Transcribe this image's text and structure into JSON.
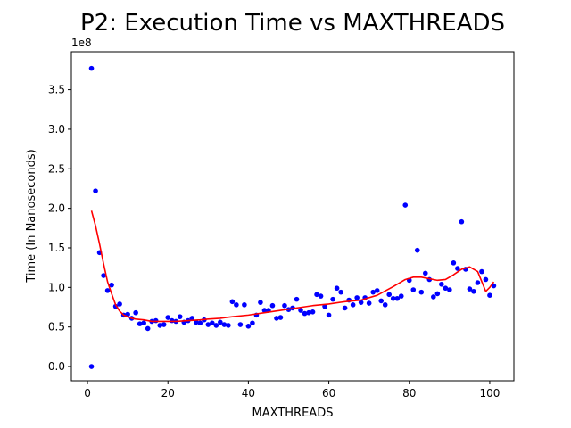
{
  "chart_data": {
    "type": "scatter",
    "title": "P2: Execution Time vs MAXTHREADS",
    "xlabel": "MAXTHREADS",
    "ylabel": "Time (In Nanoseconds)",
    "y_offset_label": "1e8",
    "y_scale": 100000000,
    "xlim": [
      -4,
      106
    ],
    "ylim": [
      -0.18,
      3.98
    ],
    "x_ticks": [
      0,
      20,
      40,
      60,
      80,
      100
    ],
    "x_tick_labels": [
      "0",
      "20",
      "40",
      "60",
      "80",
      "100"
    ],
    "y_ticks": [
      0,
      0.5,
      1,
      1.5,
      2,
      2.5,
      3,
      3.5
    ],
    "y_tick_labels": [
      "0.0",
      "0.5",
      "1.0",
      "1.5",
      "2.0",
      "2.5",
      "3.0",
      "3.5"
    ],
    "grid": false,
    "legend": "none",
    "series": [
      {
        "kind": "scatter",
        "color": "#0000ff",
        "points": [
          [
            1,
            3.77
          ],
          [
            1,
            0.0
          ],
          [
            2,
            2.22
          ],
          [
            3,
            1.44
          ],
          [
            4,
            1.15
          ],
          [
            5,
            0.96
          ],
          [
            6,
            1.03
          ],
          [
            7,
            0.76
          ],
          [
            8,
            0.79
          ],
          [
            9,
            0.65
          ],
          [
            10,
            0.66
          ],
          [
            11,
            0.61
          ],
          [
            12,
            0.68
          ],
          [
            13,
            0.54
          ],
          [
            14,
            0.55
          ],
          [
            15,
            0.48
          ],
          [
            16,
            0.57
          ],
          [
            17,
            0.58
          ],
          [
            18,
            0.52
          ],
          [
            19,
            0.53
          ],
          [
            20,
            0.62
          ],
          [
            21,
            0.58
          ],
          [
            22,
            0.57
          ],
          [
            23,
            0.63
          ],
          [
            24,
            0.56
          ],
          [
            25,
            0.58
          ],
          [
            26,
            0.61
          ],
          [
            27,
            0.56
          ],
          [
            28,
            0.55
          ],
          [
            29,
            0.59
          ],
          [
            30,
            0.53
          ],
          [
            31,
            0.55
          ],
          [
            32,
            0.52
          ],
          [
            33,
            0.56
          ],
          [
            34,
            0.53
          ],
          [
            35,
            0.52
          ],
          [
            36,
            0.82
          ],
          [
            37,
            0.78
          ],
          [
            38,
            0.53
          ],
          [
            39,
            0.78
          ],
          [
            40,
            0.51
          ],
          [
            41,
            0.55
          ],
          [
            42,
            0.65
          ],
          [
            43,
            0.81
          ],
          [
            44,
            0.71
          ],
          [
            45,
            0.71
          ],
          [
            46,
            0.77
          ],
          [
            47,
            0.61
          ],
          [
            48,
            0.62
          ],
          [
            49,
            0.77
          ],
          [
            50,
            0.72
          ],
          [
            51,
            0.74
          ],
          [
            52,
            0.85
          ],
          [
            53,
            0.71
          ],
          [
            54,
            0.67
          ],
          [
            55,
            0.68
          ],
          [
            56,
            0.69
          ],
          [
            57,
            0.91
          ],
          [
            58,
            0.89
          ],
          [
            59,
            0.76
          ],
          [
            60,
            0.65
          ],
          [
            61,
            0.85
          ],
          [
            62,
            0.99
          ],
          [
            63,
            0.94
          ],
          [
            64,
            0.74
          ],
          [
            65,
            0.84
          ],
          [
            66,
            0.78
          ],
          [
            67,
            0.87
          ],
          [
            68,
            0.81
          ],
          [
            69,
            0.87
          ],
          [
            70,
            0.8
          ],
          [
            71,
            0.94
          ],
          [
            72,
            0.96
          ],
          [
            73,
            0.83
          ],
          [
            74,
            0.78
          ],
          [
            75,
            0.91
          ],
          [
            76,
            0.86
          ],
          [
            77,
            0.86
          ],
          [
            78,
            0.89
          ],
          [
            79,
            2.04
          ],
          [
            80,
            1.09
          ],
          [
            81,
            0.97
          ],
          [
            82,
            1.47
          ],
          [
            83,
            0.94
          ],
          [
            84,
            1.18
          ],
          [
            85,
            1.1
          ],
          [
            86,
            0.88
          ],
          [
            87,
            0.92
          ],
          [
            88,
            1.04
          ],
          [
            89,
            0.99
          ],
          [
            90,
            0.97
          ],
          [
            91,
            1.31
          ],
          [
            92,
            1.24
          ],
          [
            93,
            1.83
          ],
          [
            94,
            1.23
          ],
          [
            95,
            0.98
          ],
          [
            96,
            0.95
          ],
          [
            97,
            1.06
          ],
          [
            98,
            1.2
          ],
          [
            99,
            1.1
          ],
          [
            100,
            0.9
          ],
          [
            101,
            1.02
          ]
        ]
      },
      {
        "kind": "line",
        "color": "#ff0000",
        "points": [
          [
            1,
            1.97
          ],
          [
            2,
            1.78
          ],
          [
            3,
            1.55
          ],
          [
            4,
            1.3
          ],
          [
            5,
            1.07
          ],
          [
            6,
            0.92
          ],
          [
            7,
            0.78
          ],
          [
            8,
            0.7
          ],
          [
            9,
            0.65
          ],
          [
            10,
            0.63
          ],
          [
            11,
            0.61
          ],
          [
            12,
            0.6
          ],
          [
            14,
            0.59
          ],
          [
            16,
            0.57
          ],
          [
            18,
            0.57
          ],
          [
            20,
            0.57
          ],
          [
            22,
            0.57
          ],
          [
            25,
            0.58
          ],
          [
            28,
            0.59
          ],
          [
            30,
            0.6
          ],
          [
            33,
            0.61
          ],
          [
            36,
            0.63
          ],
          [
            40,
            0.65
          ],
          [
            44,
            0.68
          ],
          [
            48,
            0.71
          ],
          [
            52,
            0.74
          ],
          [
            56,
            0.77
          ],
          [
            60,
            0.79
          ],
          [
            64,
            0.82
          ],
          [
            68,
            0.84
          ],
          [
            72,
            0.9
          ],
          [
            76,
            1.01
          ],
          [
            79,
            1.1
          ],
          [
            81,
            1.13
          ],
          [
            83,
            1.13
          ],
          [
            85,
            1.11
          ],
          [
            87,
            1.09
          ],
          [
            89,
            1.1
          ],
          [
            91,
            1.16
          ],
          [
            93,
            1.23
          ],
          [
            95,
            1.26
          ],
          [
            97,
            1.2
          ],
          [
            99,
            0.95
          ],
          [
            100,
            1.0
          ],
          [
            101,
            1.07
          ]
        ]
      }
    ]
  }
}
